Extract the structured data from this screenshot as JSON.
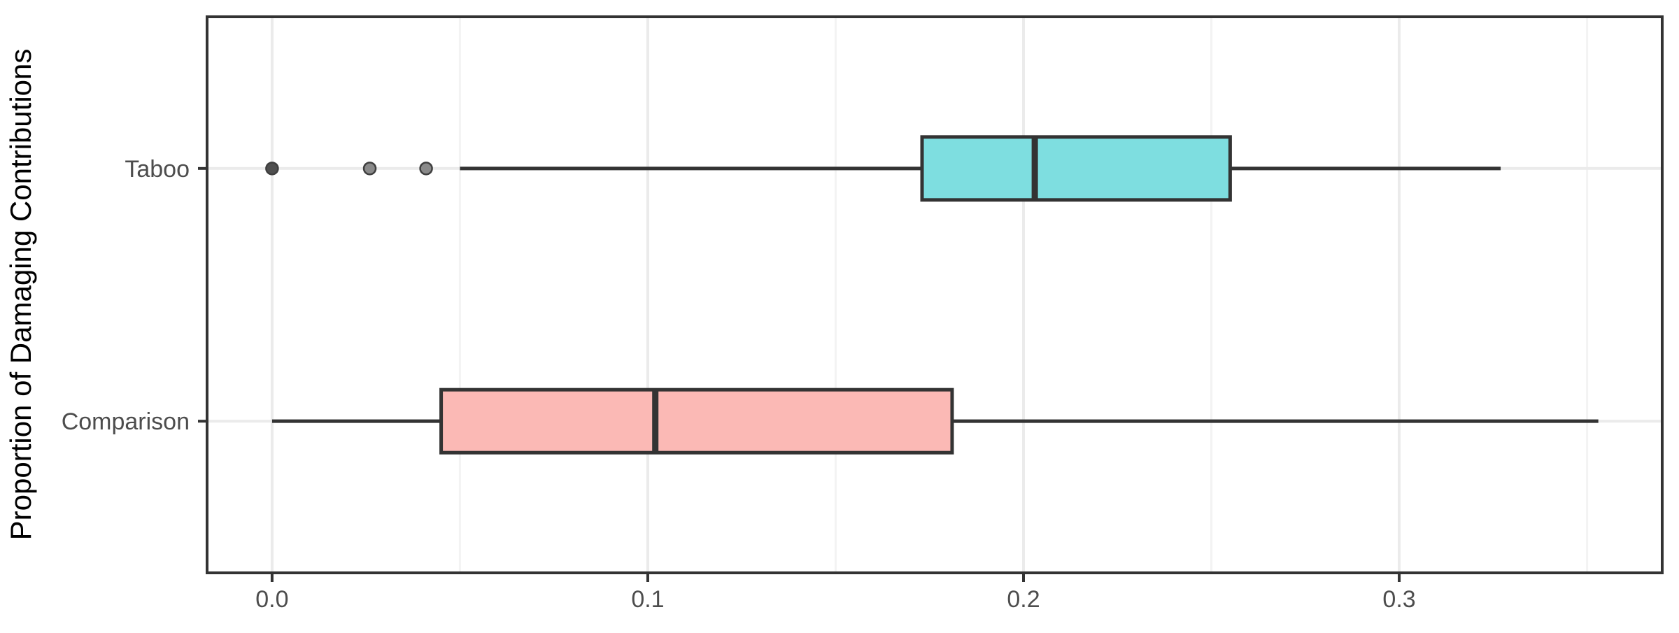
{
  "figure": {
    "kind": "ggplot-style horizontal boxplot",
    "background": "#FFFFFF"
  },
  "chart_data": {
    "type": "boxplot",
    "orientation": "horizontal",
    "title": "",
    "xlabel": "",
    "ylabel": "Proportion of Damaging Contributions",
    "xlim": [
      -0.0173,
      0.37
    ],
    "x_ticks": [
      0.0,
      0.1,
      0.2,
      0.3
    ],
    "x_tick_labels": [
      "0.0",
      "0.1",
      "0.2",
      "0.3"
    ],
    "x_minor_ticks": [
      0.05,
      0.15,
      0.25,
      0.35
    ],
    "grid": true,
    "legend": "none",
    "categories": [
      "Taboo",
      "Comparison"
    ],
    "series": [
      {
        "name": "Taboo",
        "min": 0.05,
        "q1": 0.173,
        "median": 0.203,
        "q3": 0.255,
        "max": 0.327,
        "outliers": [
          0.0,
          0.026,
          0.041
        ],
        "outlier_colors": [
          "#4f4f4f",
          "#8a8a8a",
          "#8a8a8a"
        ],
        "fill": "#7EDEE0"
      },
      {
        "name": "Comparison",
        "min": 0.0,
        "q1": 0.045,
        "median": 0.102,
        "q3": 0.181,
        "max": 0.353,
        "outliers": [],
        "outlier_colors": [],
        "fill": "#FBB9B5"
      }
    ],
    "colors": {
      "box_stroke": "#333333",
      "median_stroke": "#333333",
      "whisker_stroke": "#333333",
      "panel_border": "#333333",
      "grid_major": "#EBEBEB",
      "grid_minor": "#F3F3F3",
      "tick_mark": "#333333",
      "axis_text": "#4D4D4D",
      "title_text": "#000000",
      "outlier_ring": "#3f3f3f",
      "background": "#FFFFFF"
    }
  }
}
